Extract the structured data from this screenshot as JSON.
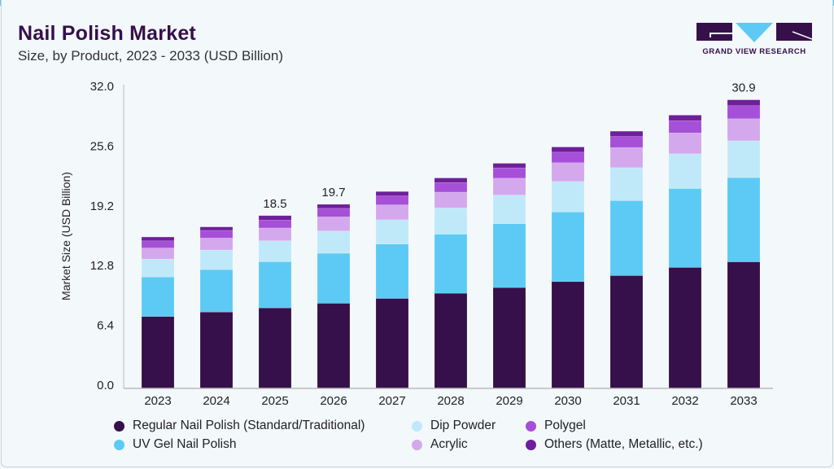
{
  "header": {
    "title": "Nail Polish Market",
    "subtitle": "Size, by Product, 2023 - 2033 (USD Billion)"
  },
  "logo": {
    "text": "GRAND VIEW RESEARCH"
  },
  "chart_data": {
    "type": "bar",
    "stacked": true,
    "title": "Nail Polish Market",
    "subtitle": "Size, by Product, 2023 - 2033 (USD Billion)",
    "xlabel": "",
    "ylabel": "Market Size (USD Billion)",
    "ylim": [
      0,
      32.0
    ],
    "yticks": [
      "0.0",
      "6.4",
      "12.8",
      "19.2",
      "25.6",
      "32.0"
    ],
    "grid": false,
    "legend_placement": "bottom",
    "categories": [
      "2023",
      "2024",
      "2025",
      "2026",
      "2027",
      "2028",
      "2029",
      "2030",
      "2031",
      "2032",
      "2033"
    ],
    "series": [
      {
        "name": "Regular Nail Polish (Standard/Traditional)",
        "color": "#36104a",
        "values": [
          7.7,
          8.18,
          8.62,
          9.11,
          9.63,
          10.19,
          10.8,
          11.44,
          12.08,
          12.95,
          13.55
        ]
      },
      {
        "name": "UV Gel Nail Polish",
        "color": "#5ccaf5",
        "values": [
          4.23,
          4.54,
          4.94,
          5.36,
          5.83,
          6.32,
          6.84,
          7.45,
          8.03,
          8.45,
          9.02
        ]
      },
      {
        "name": "Dip Powder",
        "color": "#bfe9f9",
        "values": [
          1.92,
          2.1,
          2.25,
          2.39,
          2.6,
          2.82,
          3.06,
          3.27,
          3.53,
          3.73,
          3.95
        ]
      },
      {
        "name": "Acrylic",
        "color": "#d4a8ec",
        "values": [
          1.19,
          1.28,
          1.37,
          1.51,
          1.6,
          1.69,
          1.81,
          2.01,
          2.15,
          2.23,
          2.36
        ]
      },
      {
        "name": "Polygel",
        "color": "#a64fd8",
        "values": [
          0.76,
          0.82,
          0.84,
          0.91,
          0.96,
          1.02,
          1.1,
          1.13,
          1.2,
          1.31,
          1.4
        ]
      },
      {
        "name": "Others (Matte, Metallic, etc.)",
        "color": "#6e1f9a",
        "values": [
          0.41,
          0.37,
          0.48,
          0.43,
          0.46,
          0.49,
          0.49,
          0.55,
          0.55,
          0.59,
          0.62
        ]
      }
    ],
    "data_labels": [
      {
        "category": "2025",
        "text": "18.5"
      },
      {
        "category": "2026",
        "text": "19.7"
      },
      {
        "category": "2033",
        "text": "30.9"
      }
    ]
  }
}
